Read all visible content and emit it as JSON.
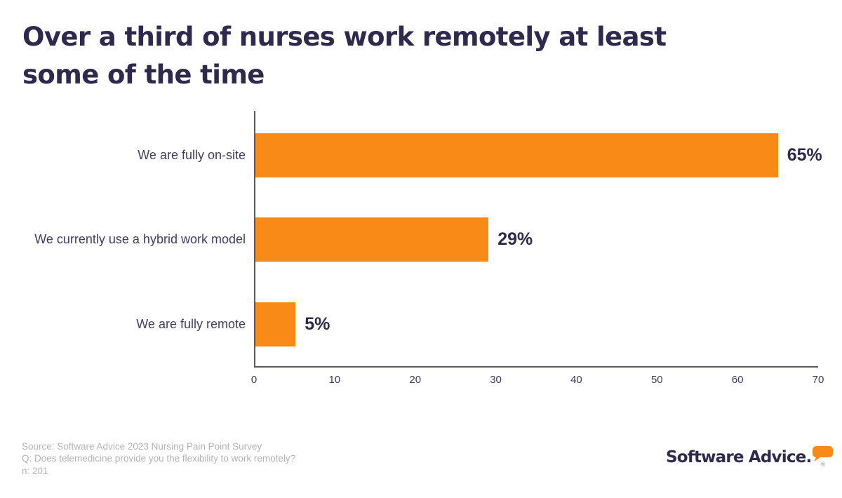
{
  "title": {
    "lines": [
      "Over a third of nurses work remotely at least",
      "some of the time"
    ]
  },
  "chart_data": {
    "type": "bar",
    "orientation": "horizontal",
    "categories": [
      "We are fully on-site",
      "We currently use a hybrid work model",
      "We are fully remote"
    ],
    "values": [
      65,
      29,
      5
    ],
    "value_labels": [
      "65%",
      "29%",
      "5%"
    ],
    "xlim": [
      0,
      70
    ],
    "x_ticks": [
      "0",
      "10",
      "20",
      "30",
      "40",
      "50",
      "60",
      "70"
    ],
    "bar_color": "#FA8A17",
    "grid": false,
    "legend": false,
    "xlabel": "",
    "ylabel": ""
  },
  "footer": {
    "source": "Source: Software Advice 2023 Nursing Pain Point Survey",
    "question": "Q: Does telemedicine provide you the flexibility to work remotely?",
    "n": "n: 201"
  },
  "logo": {
    "text": "Software Advice",
    "period": ".",
    "registered": "®",
    "bubble_color": "#FA8A17"
  },
  "colors": {
    "accent_orange": "#FA8A17",
    "navy": "#2F2A4D",
    "label_navy": "#413C63",
    "axis_gray": "#5A5763",
    "footnote_gray": "#B3B3B3"
  }
}
